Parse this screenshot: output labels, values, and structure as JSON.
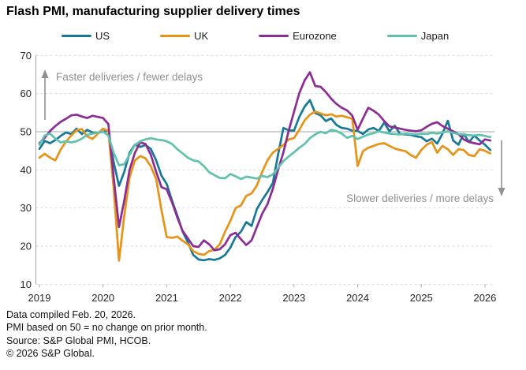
{
  "title": "Flash PMI, manufacturing supplier delivery times",
  "legend": {
    "items": [
      {
        "label": "US",
        "color": "#177898"
      },
      {
        "label": "UK",
        "color": "#e89216"
      },
      {
        "label": "Eurozone",
        "color": "#8c2c94"
      },
      {
        "label": "Japan",
        "color": "#5fc2ad"
      }
    ]
  },
  "annotations": {
    "faster": "Faster deliveries / fewer delays",
    "slower": "Slower deliveries / more delays"
  },
  "footer": {
    "line1": "Data compiled Feb. 20, 2026.",
    "line2": "PMI based on 50 = no change on prior month.",
    "line3": "Source: S&P Global PMI, HCOB.",
    "line4": "© 2026 S&P Global."
  },
  "chart_data": {
    "type": "line",
    "title": "Flash PMI, manufacturing supplier delivery times",
    "x_frequency": "monthly",
    "x_start": "2019-01",
    "x_end": "2026-02",
    "x_tick_labels": [
      "2019",
      "2020",
      "2021",
      "2022",
      "2023",
      "2024",
      "2025",
      "2026"
    ],
    "y_ticks": [
      70,
      60,
      50,
      40,
      30,
      20,
      10
    ],
    "ylim": [
      10,
      70
    ],
    "baseline": 50,
    "grid": "horizontal dashed gridlines, solid line at 50",
    "legend_position": "top",
    "series": [
      {
        "name": "US",
        "color": "#177898",
        "values": [
          45.5,
          47.6,
          47.0,
          47.8,
          48.9,
          49.8,
          49.4,
          50.8,
          49.4,
          50.5,
          49.8,
          49.7,
          50.0,
          50.3,
          42.0,
          35.8,
          39.5,
          44.5,
          46.6,
          46.0,
          46.5,
          45.5,
          42.5,
          38.5,
          36.3,
          32.0,
          28.0,
          23.8,
          21.0,
          17.7,
          16.5,
          16.3,
          16.6,
          16.4,
          16.8,
          17.7,
          19.6,
          22.4,
          23.8,
          26.3,
          25.3,
          29.7,
          32.1,
          34.2,
          36.5,
          44.0,
          51.0,
          50.4,
          50.3,
          53.9,
          56.6,
          58.3,
          54.9,
          54.3,
          52.8,
          53.5,
          51.8,
          51.0,
          50.8,
          50.3,
          50.2,
          49.4,
          50.6,
          51.0,
          50.2,
          52.4,
          50.1,
          51.6,
          49.4,
          49.3,
          49.2,
          48.8,
          48.6,
          47.5,
          48.2,
          46.9,
          49.5,
          52.9,
          47.7,
          46.6,
          49.4,
          47.3,
          49.0,
          47.7,
          46.6,
          45.2
        ]
      },
      {
        "name": "UK",
        "color": "#e89216",
        "values": [
          43.2,
          44.2,
          43.2,
          42.5,
          45.3,
          47.4,
          49.0,
          50.4,
          50.7,
          48.8,
          48.1,
          49.5,
          50.8,
          50.2,
          35.0,
          16.2,
          28.0,
          38.0,
          42.5,
          43.6,
          43.0,
          41.0,
          37.6,
          29.5,
          22.4,
          22.2,
          22.5,
          21.4,
          20.5,
          18.7,
          18.0,
          17.7,
          18.7,
          19.0,
          20.5,
          23.8,
          26.6,
          30.0,
          30.7,
          33.2,
          33.8,
          35.9,
          39.5,
          42.5,
          44.5,
          45.5,
          46.5,
          48.0,
          48.3,
          50.5,
          53.0,
          54.5,
          55.3,
          54.8,
          54.3,
          54.6,
          54.0,
          54.2,
          53.8,
          53.4,
          41.0,
          44.9,
          45.8,
          46.3,
          46.8,
          47.0,
          46.3,
          45.6,
          45.2,
          44.9,
          43.9,
          43.2,
          45.2,
          46.6,
          47.3,
          44.5,
          46.3,
          45.4,
          43.9,
          45.4,
          45.2,
          43.9,
          43.6,
          45.4,
          45.0,
          44.3
        ]
      },
      {
        "name": "Eurozone",
        "color": "#8c2c94",
        "values": [
          47.0,
          48.4,
          50.2,
          51.5,
          52.6,
          53.4,
          54.3,
          54.5,
          54.0,
          53.6,
          54.2,
          53.9,
          53.6,
          52.0,
          38.0,
          25.0,
          32.0,
          40.0,
          44.5,
          47.2,
          46.8,
          44.0,
          39.5,
          35.5,
          34.9,
          31.5,
          27.5,
          24.0,
          22.0,
          20.0,
          19.8,
          21.5,
          20.5,
          18.9,
          19.2,
          20.5,
          22.9,
          23.5,
          21.8,
          20.3,
          21.5,
          25.0,
          28.5,
          31.0,
          35.0,
          40.0,
          44.6,
          50.3,
          55.2,
          60.1,
          63.5,
          65.6,
          62.0,
          61.8,
          60.4,
          58.7,
          57.3,
          56.3,
          55.6,
          54.2,
          50.5,
          53.5,
          56.3,
          55.5,
          54.5,
          52.8,
          51.4,
          51.1,
          50.8,
          50.5,
          50.3,
          50.1,
          50.4,
          51.3,
          52.1,
          52.5,
          51.5,
          50.8,
          50.1,
          49.4,
          48.0,
          47.3,
          47.0,
          46.7,
          48.0,
          47.7
        ]
      },
      {
        "name": "Japan",
        "color": "#5fc2ad",
        "values": [
          46.6,
          49.0,
          49.5,
          48.2,
          47.2,
          47.5,
          47.2,
          47.5,
          48.2,
          49.2,
          49.5,
          49.8,
          50.0,
          49.0,
          44.5,
          41.2,
          41.5,
          44.0,
          46.5,
          47.5,
          48.0,
          48.3,
          48.0,
          47.8,
          47.5,
          46.8,
          45.4,
          44.3,
          43.2,
          42.5,
          42.2,
          41.0,
          39.4,
          38.6,
          37.9,
          37.8,
          38.9,
          38.3,
          37.6,
          38.2,
          38.0,
          37.7,
          38.4,
          38.1,
          38.8,
          40.5,
          42.3,
          43.5,
          44.6,
          45.8,
          46.8,
          48.3,
          49.3,
          50.0,
          49.6,
          50.5,
          50.2,
          49.5,
          48.4,
          48.9,
          48.1,
          48.7,
          49.3,
          49.6,
          50.1,
          49.8,
          49.5,
          49.4,
          49.3,
          49.5,
          49.4,
          49.3,
          49.5,
          49.4,
          49.7,
          49.5,
          49.8,
          50.1,
          49.7,
          49.4,
          49.3,
          49.1,
          49.0,
          49.2,
          48.9,
          48.6
        ]
      }
    ]
  }
}
